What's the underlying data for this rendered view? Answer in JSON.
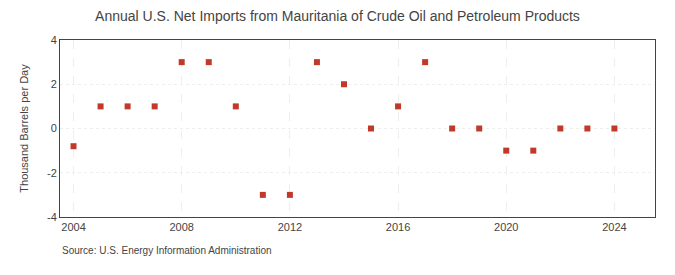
{
  "chart_data": {
    "type": "scatter",
    "title": "Annual U.S. Net Imports from Mauritania of Crude Oil and Petroleum Products",
    "ylabel": "Thousand Barrels per Day",
    "source": "Source: U.S. Energy Information Administration",
    "x": [
      2004,
      2005,
      2006,
      2007,
      2008,
      2009,
      2010,
      2011,
      2012,
      2013,
      2014,
      2015,
      2016,
      2017,
      2018,
      2019,
      2020,
      2021,
      2022,
      2023,
      2024
    ],
    "values": [
      -0.8,
      1.0,
      1.0,
      1.0,
      3.0,
      3.0,
      1.0,
      -3.0,
      -3.0,
      3.0,
      2.0,
      0.0,
      1.0,
      3.0,
      0.0,
      0.0,
      -1.0,
      -1.0,
      0.0,
      0.0,
      0.0
    ],
    "color": "#c0392b",
    "marker": "square",
    "xlim": [
      2003.5,
      2025.5
    ],
    "ylim": [
      -4,
      4
    ],
    "xticks": [
      2004,
      2008,
      2012,
      2016,
      2020,
      2024
    ],
    "yticks": [
      -4,
      -2,
      0,
      2,
      4
    ],
    "grid": true
  }
}
